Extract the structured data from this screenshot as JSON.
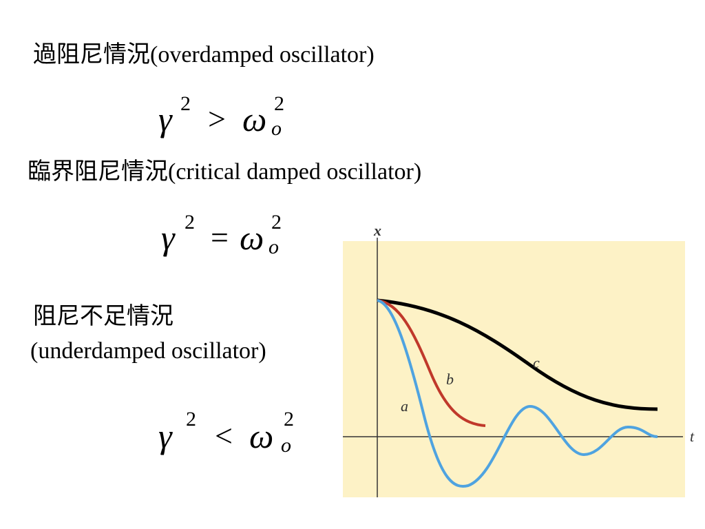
{
  "sections": [
    {
      "heading": "過阻尼情況(overdamped oscillator)",
      "formula": {
        "lhs": "γ",
        "lhs_sup": "2",
        "op": ">",
        "rhs": "ω",
        "rhs_sub": "o",
        "rhs_sup": "2"
      }
    },
    {
      "heading": "臨界阻尼情況(critical damped oscillator)",
      "formula": {
        "lhs": "γ",
        "lhs_sup": "2",
        "op": "=",
        "rhs": "ω",
        "rhs_sub": "o",
        "rhs_sup": "2"
      }
    },
    {
      "heading": [
        "阻尼不足情況",
        "(underdamped oscillator)"
      ],
      "formula": {
        "lhs": "γ",
        "lhs_sup": "2",
        "op": "<",
        "rhs": "ω",
        "rhs_sub": "o",
        "rhs_sup": "2"
      }
    }
  ],
  "graph": {
    "y_axis_label": "x",
    "x_axis_label": "t",
    "curve_labels": [
      "a",
      "b",
      "c"
    ]
  }
}
